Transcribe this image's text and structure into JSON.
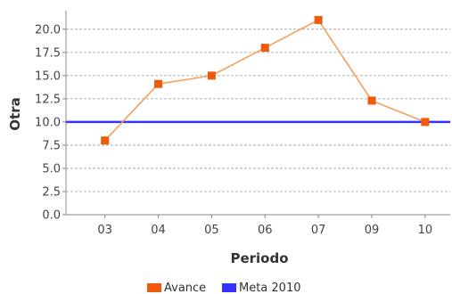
{
  "chart_data": {
    "type": "line",
    "title": "",
    "xlabel": "Periodo",
    "ylabel": "Otra",
    "categories": [
      "03",
      "04",
      "05",
      "06",
      "07",
      "09",
      "10"
    ],
    "ylim": [
      0,
      22
    ],
    "yticks": [
      "0.0",
      "2.5",
      "5.0",
      "7.5",
      "10.0",
      "12.5",
      "15.0",
      "17.5",
      "20.0"
    ],
    "grid": true,
    "legend_position": "bottom",
    "series": [
      {
        "name": "Avance",
        "values": [
          8.0,
          14.1,
          15.0,
          18.0,
          21.0,
          12.3,
          10.0
        ],
        "line_color": "#f5a05a",
        "marker_color": "#f05a0a"
      }
    ],
    "reference_lines": [
      {
        "name": "Meta 2010",
        "value": 10.0,
        "color": "#3333ff"
      }
    ]
  }
}
